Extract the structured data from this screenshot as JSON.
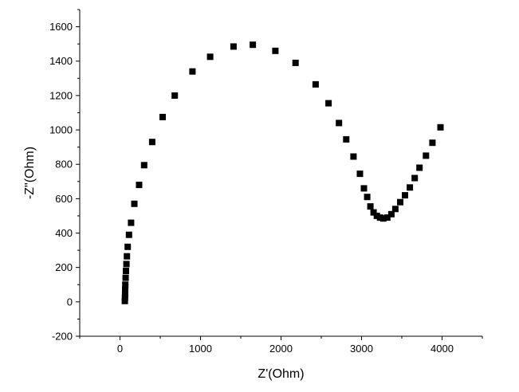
{
  "chart_data": {
    "type": "scatter",
    "title": "",
    "xlabel": "Z'(Ohm)",
    "ylabel": "-Z\"(Ohm)",
    "xlim": [
      -500,
      4500
    ],
    "ylim": [
      -200,
      1700
    ],
    "xticks": [
      0,
      1000,
      2000,
      3000,
      4000
    ],
    "yticks": [
      -200,
      0,
      200,
      400,
      600,
      800,
      1000,
      1200,
      1400,
      1600
    ],
    "xtick_labels": [
      "0",
      "1000",
      "2000",
      "3000",
      "4000"
    ],
    "ytick_labels": [
      "-200",
      "0",
      "200",
      "400",
      "600",
      "800",
      "1000",
      "1200",
      "1400",
      "1600"
    ],
    "grid": false,
    "legend": "none",
    "marker": "square",
    "marker_color": "#000000",
    "series": [
      {
        "points": [
          [
            60,
            5
          ],
          [
            62,
            25
          ],
          [
            63,
            45
          ],
          [
            64,
            70
          ],
          [
            66,
            100
          ],
          [
            70,
            140
          ],
          [
            74,
            180
          ],
          [
            80,
            220
          ],
          [
            86,
            265
          ],
          [
            96,
            320
          ],
          [
            112,
            390
          ],
          [
            138,
            460
          ],
          [
            178,
            570
          ],
          [
            238,
            680
          ],
          [
            300,
            795
          ],
          [
            400,
            930
          ],
          [
            530,
            1075
          ],
          [
            680,
            1200
          ],
          [
            900,
            1340
          ],
          [
            1120,
            1425
          ],
          [
            1410,
            1485
          ],
          [
            1650,
            1495
          ],
          [
            1930,
            1460
          ],
          [
            2180,
            1390
          ],
          [
            2430,
            1265
          ],
          [
            2590,
            1155
          ],
          [
            2720,
            1040
          ],
          [
            2810,
            945
          ],
          [
            2900,
            845
          ],
          [
            2980,
            745
          ],
          [
            3030,
            660
          ],
          [
            3070,
            610
          ],
          [
            3110,
            555
          ],
          [
            3150,
            520
          ],
          [
            3190,
            500
          ],
          [
            3230,
            490
          ],
          [
            3270,
            485
          ],
          [
            3320,
            490
          ],
          [
            3370,
            510
          ],
          [
            3420,
            540
          ],
          [
            3480,
            580
          ],
          [
            3540,
            620
          ],
          [
            3600,
            665
          ],
          [
            3660,
            720
          ],
          [
            3720,
            780
          ],
          [
            3800,
            850
          ],
          [
            3880,
            925
          ],
          [
            3980,
            1015
          ]
        ]
      }
    ]
  }
}
